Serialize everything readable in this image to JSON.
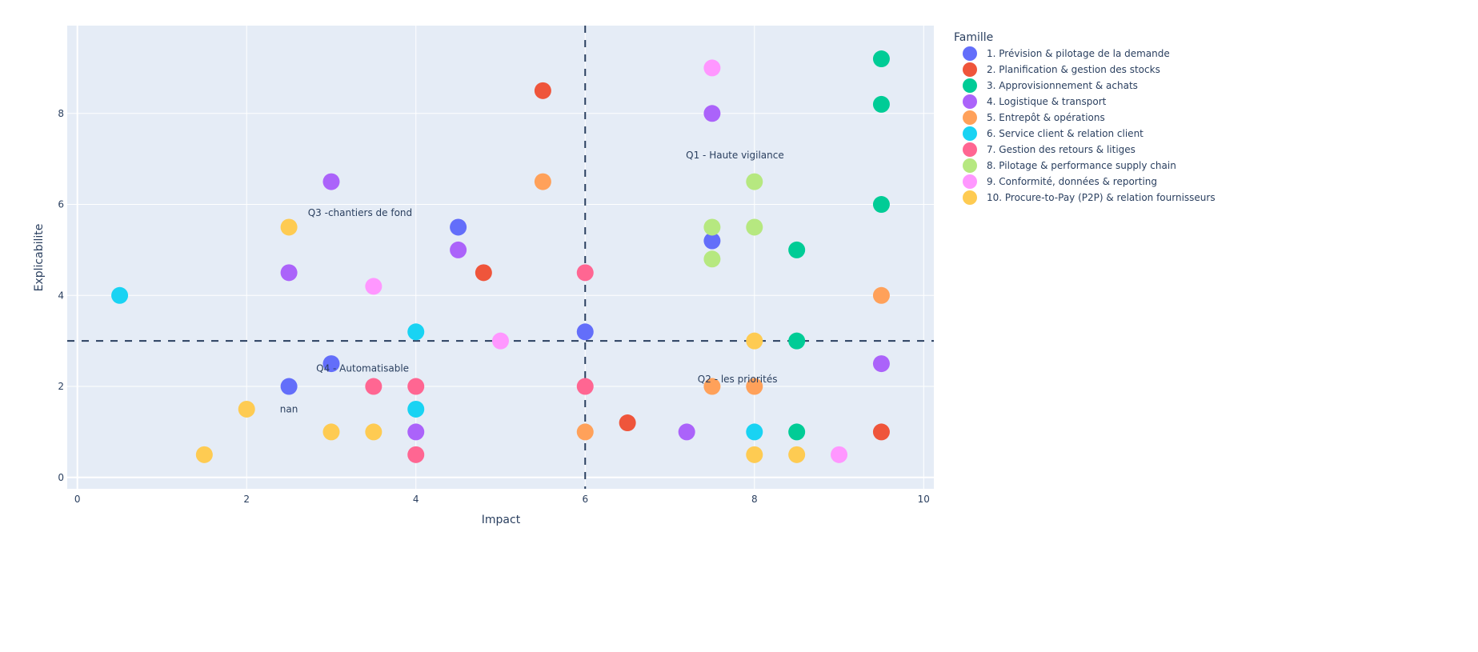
{
  "chart_data": {
    "type": "scatter",
    "xlabel": "Impact",
    "ylabel": "Explicabilite",
    "xlim": [
      -0.12,
      10.12
    ],
    "ylim": [
      -0.25,
      9.93
    ],
    "xticks": [
      0,
      2,
      4,
      6,
      8,
      10
    ],
    "yticks": [
      0,
      2,
      4,
      6,
      8
    ],
    "grid": true,
    "threshold_x": 6,
    "threshold_y": 3,
    "legend_title": "Famille",
    "legend_position": "right",
    "series": [
      {
        "name": "1. Prévision & pilotage de la demande",
        "color": "#636efa",
        "points": [
          [
            4.5,
            5.5
          ],
          [
            3,
            2.5
          ],
          [
            2.5,
            2
          ],
          [
            6,
            3.2
          ],
          [
            7.5,
            5.2
          ]
        ]
      },
      {
        "name": "2. Planification & gestion des stocks",
        "color": "#EF553B",
        "points": [
          [
            5.5,
            8.5
          ],
          [
            4.8,
            4.5
          ],
          [
            6.5,
            1.2
          ],
          [
            9.5,
            1
          ]
        ]
      },
      {
        "name": "3. Approvisionnement & achats",
        "color": "#00cc96",
        "points": [
          [
            9.5,
            9.2
          ],
          [
            9.5,
            8.2
          ],
          [
            9.5,
            6
          ],
          [
            8.5,
            5
          ],
          [
            8.5,
            3
          ],
          [
            8.5,
            1
          ]
        ]
      },
      {
        "name": "4. Logistique & transport",
        "color": "#ab63fa",
        "points": [
          [
            3,
            6.5
          ],
          [
            2.5,
            4.5
          ],
          [
            4.5,
            5
          ],
          [
            7.5,
            8
          ],
          [
            9.5,
            2.5
          ],
          [
            4,
            1
          ],
          [
            7.2,
            1
          ]
        ]
      },
      {
        "name": "5. Entrepôt & opérations",
        "color": "#FFA15A",
        "points": [
          [
            5.5,
            6.5
          ],
          [
            9.5,
            4
          ],
          [
            7.5,
            2
          ],
          [
            8,
            2
          ],
          [
            6,
            1
          ]
        ]
      },
      {
        "name": "6. Service client & relation client",
        "color": "#19d3f3",
        "points": [
          [
            0.5,
            4
          ],
          [
            4,
            3.2
          ],
          [
            4,
            1.5
          ],
          [
            8,
            1
          ]
        ]
      },
      {
        "name": "7. Gestion des retours & litiges",
        "color": "#FF6692",
        "points": [
          [
            6,
            4.5
          ],
          [
            3.5,
            2
          ],
          [
            4,
            2
          ],
          [
            6,
            2
          ],
          [
            4,
            0.5
          ]
        ]
      },
      {
        "name": " 8. Pilotage & performance supply chain",
        "color": "#B6E880",
        "points": [
          [
            8,
            6.5
          ],
          [
            7.5,
            5.5
          ],
          [
            8,
            5.5
          ],
          [
            7.5,
            4.8
          ]
        ]
      },
      {
        "name": "9. Conformité, données & reporting",
        "color": "#FF97FF",
        "points": [
          [
            7.5,
            9
          ],
          [
            3.5,
            4.2
          ],
          [
            5,
            3
          ],
          [
            9,
            0.5
          ]
        ]
      },
      {
        "name": "10. Procure-to-Pay (P2P) & relation fournisseurs",
        "color": "#FECB52",
        "points": [
          [
            2.5,
            5.5
          ],
          [
            2,
            1.5
          ],
          [
            1.5,
            0.5
          ],
          [
            3,
            1
          ],
          [
            3.5,
            1
          ],
          [
            8,
            3
          ],
          [
            8,
            0.5
          ],
          [
            8.5,
            0.5
          ]
        ]
      }
    ],
    "annotations": [
      {
        "text": "Q1 - Haute vigilance",
        "x": 7.77,
        "y": 7.08
      },
      {
        "text": "Q2 - les priorités",
        "x": 7.8,
        "y": 2.16
      },
      {
        "text": "Q3 -chantiers de fond",
        "x": 3.34,
        "y": 5.82
      },
      {
        "text": "Q4 - Automatisable",
        "x": 3.37,
        "y": 2.4
      },
      {
        "text": "nan",
        "x": 2.5,
        "y": 1.5
      }
    ]
  }
}
